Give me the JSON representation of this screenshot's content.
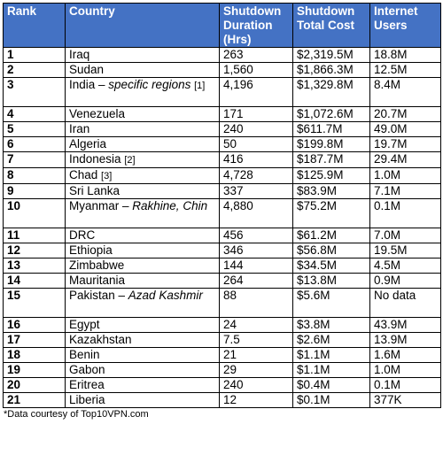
{
  "headers": {
    "rank": "Rank",
    "country": "Country",
    "duration": "Shutdown Duration (Hrs)",
    "cost": "Shutdown Total Cost",
    "users": "Internet Users"
  },
  "rows": [
    {
      "rank": "1",
      "country": "Iraq",
      "country_suffix": "",
      "note": "",
      "duration": "263",
      "cost": "$2,319.5M",
      "users": "18.8M"
    },
    {
      "rank": "2",
      "country": "Sudan",
      "country_suffix": "",
      "note": "",
      "duration": "1,560",
      "cost": "$1,866.3M",
      "users": "12.5M"
    },
    {
      "rank": "3",
      "country": "India – ",
      "country_suffix": "specific regions",
      "note": "[1]",
      "duration": "4,196",
      "cost": "$1,329.8M",
      "users": "8.4M"
    },
    {
      "rank": "4",
      "country": "Venezuela",
      "country_suffix": "",
      "note": "",
      "duration": "171",
      "cost": "$1,072.6M",
      "users": "20.7M"
    },
    {
      "rank": "5",
      "country": "Iran",
      "country_suffix": "",
      "note": "",
      "duration": "240",
      "cost": "$611.7M",
      "users": "49.0M"
    },
    {
      "rank": "6",
      "country": "Algeria",
      "country_suffix": "",
      "note": "",
      "duration": "50",
      "cost": "$199.8M",
      "users": "19.7M"
    },
    {
      "rank": "7",
      "country": "Indonesia",
      "country_suffix": "",
      "note": "[2]",
      "duration": "416",
      "cost": "$187.7M",
      "users": "29.4M"
    },
    {
      "rank": "8",
      "country": "Chad",
      "country_suffix": "",
      "note": "[3]",
      "duration": "4,728",
      "cost": "$125.9M",
      "users": "1.0M"
    },
    {
      "rank": "9",
      "country": "Sri Lanka",
      "country_suffix": "",
      "note": "",
      "duration": "337",
      "cost": "$83.9M",
      "users": "7.1M"
    },
    {
      "rank": "10",
      "country": "Myanmar – ",
      "country_suffix": "Rakhine, Chin",
      "note": "",
      "duration": "4,880",
      "cost": "$75.2M",
      "users": "0.1M"
    },
    {
      "rank": "11",
      "country": "DRC",
      "country_suffix": "",
      "note": "",
      "duration": "456",
      "cost": "$61.2M",
      "users": "7.0M"
    },
    {
      "rank": "12",
      "country": "Ethiopia",
      "country_suffix": "",
      "note": "",
      "duration": "346",
      "cost": "$56.8M",
      "users": "19.5M"
    },
    {
      "rank": "13",
      "country": "Zimbabwe",
      "country_suffix": "",
      "note": "",
      "duration": "144",
      "cost": "$34.5M",
      "users": "4.5M"
    },
    {
      "rank": "14",
      "country": "Mauritania",
      "country_suffix": "",
      "note": "",
      "duration": "264",
      "cost": "$13.8M",
      "users": "0.9M"
    },
    {
      "rank": "15",
      "country": "Pakistan – ",
      "country_suffix": "Azad Kashmir",
      "note": "",
      "duration": "88",
      "cost": "$5.6M",
      "users": "No data"
    },
    {
      "rank": "16",
      "country": "Egypt",
      "country_suffix": "",
      "note": "",
      "duration": "24",
      "cost": "$3.8M",
      "users": "43.9M"
    },
    {
      "rank": "17",
      "country": "Kazakhstan",
      "country_suffix": "",
      "note": "",
      "duration": "7.5",
      "cost": "$2.6M",
      "users": "13.9M"
    },
    {
      "rank": "18",
      "country": "Benin",
      "country_suffix": "",
      "note": "",
      "duration": "21",
      "cost": "$1.1M",
      "users": "1.6M"
    },
    {
      "rank": "19",
      "country": "Gabon",
      "country_suffix": "",
      "note": "",
      "duration": "29",
      "cost": "$1.1M",
      "users": "1.0M"
    },
    {
      "rank": "20",
      "country": "Eritrea",
      "country_suffix": "",
      "note": "",
      "duration": "240",
      "cost": "$0.4M",
      "users": "0.1M"
    },
    {
      "rank": "21",
      "country": "Liberia",
      "country_suffix": "",
      "note": "",
      "duration": "12",
      "cost": "$0.1M",
      "users": "377K"
    }
  ],
  "footer": "*Data courtesy of Top10VPN.com"
}
